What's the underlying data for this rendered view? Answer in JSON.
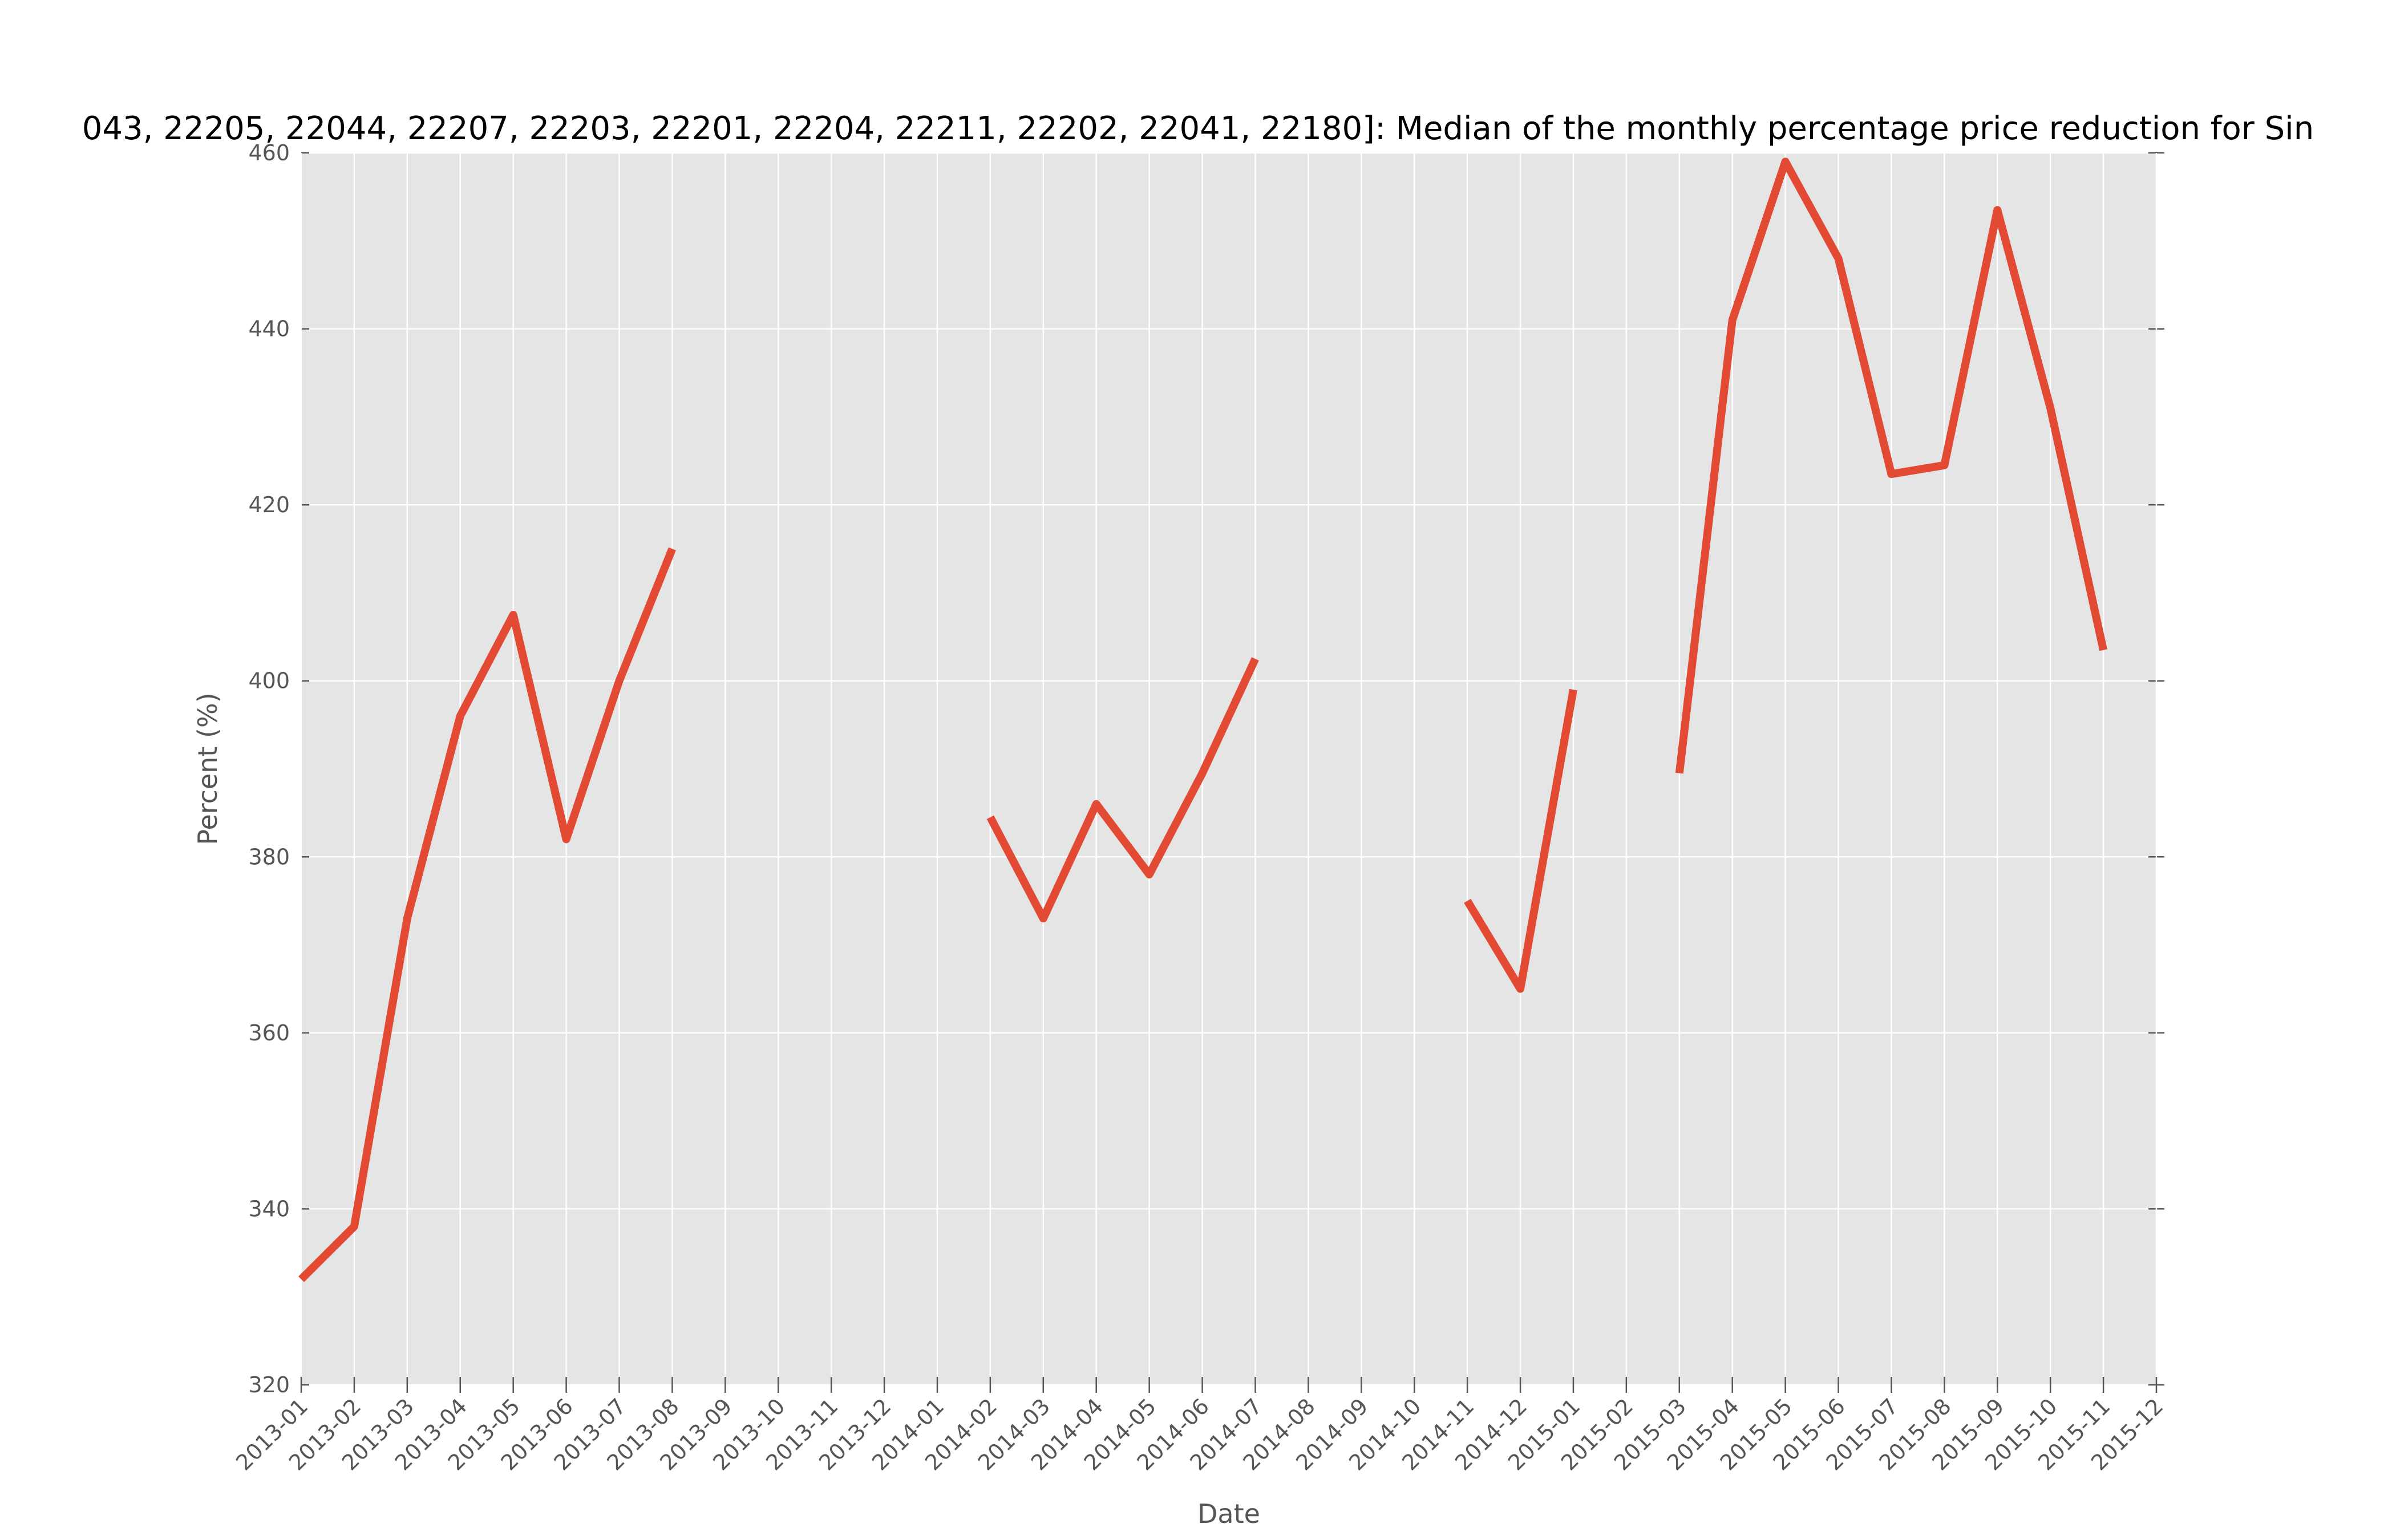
{
  "chart_data": {
    "type": "line",
    "title": "043, 22205, 22044, 22207, 22203, 22201, 22204, 22211, 22202, 22041, 22180]: Median of the monthly percentage price reduction for Sin",
    "x_label": "Date",
    "y_label": "Percent (%)",
    "categories": [
      "2013-01",
      "2013-02",
      "2013-03",
      "2013-04",
      "2013-05",
      "2013-06",
      "2013-07",
      "2013-08",
      "2013-09",
      "2013-10",
      "2013-11",
      "2013-12",
      "2014-01",
      "2014-02",
      "2014-03",
      "2014-04",
      "2014-05",
      "2014-06",
      "2014-07",
      "2014-08",
      "2014-09",
      "2014-10",
      "2014-11",
      "2014-12",
      "2015-01",
      "2015-02",
      "2015-03",
      "2015-04",
      "2015-05",
      "2015-06",
      "2015-07",
      "2015-08",
      "2015-09",
      "2015-10",
      "2015-11",
      "2015-12"
    ],
    "series": [
      {
        "color": "#e24a33",
        "values": [
          332,
          338,
          373,
          396,
          407.5,
          382,
          400,
          415,
          null,
          null,
          null,
          null,
          null,
          384.5,
          373,
          386,
          378,
          389.5,
          402.5,
          null,
          null,
          null,
          375,
          365,
          399,
          null,
          389.5,
          441,
          459,
          448,
          423.5,
          424.5,
          453.5,
          431,
          403.5,
          null
        ]
      }
    ],
    "ylim": [
      320,
      460
    ],
    "yticks": [
      320,
      340,
      360,
      380,
      400,
      420,
      440,
      460
    ],
    "grid": true
  }
}
